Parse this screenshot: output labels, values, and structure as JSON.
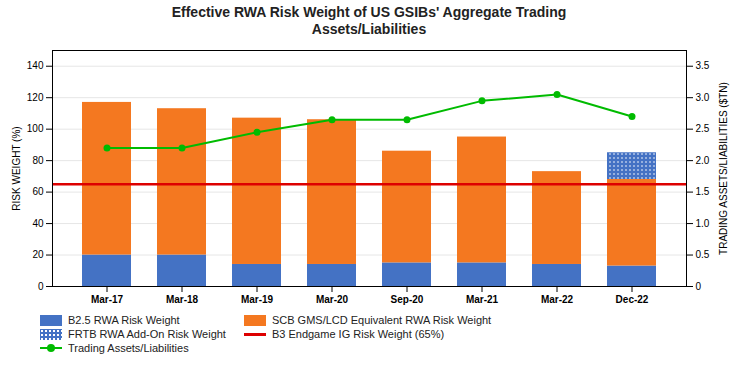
{
  "chart_data": {
    "type": "bar",
    "title": "Effective RWA Risk Weight of US GSIBs' Aggregate Trading\nAssets/Liabilities",
    "categories": [
      "Mar-17",
      "Mar-18",
      "Mar-19",
      "Mar-20",
      "Sep-20",
      "Mar-21",
      "Mar-22",
      "Dec-22"
    ],
    "stacked": true,
    "series": [
      {
        "name": "B2.5 RWA Risk Weight",
        "type": "bar",
        "color": "#4472C4",
        "values": [
          20,
          20,
          14,
          14,
          15,
          15,
          14,
          13
        ]
      },
      {
        "name": "SCB GMS/LCD Equivalent RWA Risk Weight",
        "type": "bar",
        "color": "#F47820",
        "values": [
          97,
          93,
          93,
          92,
          71,
          80,
          59,
          55
        ]
      },
      {
        "name": "FRTB RWA Add-On Risk Weight",
        "type": "bar",
        "color": "#4472C4",
        "values": [
          0,
          0,
          0,
          0,
          0,
          0,
          0,
          17
        ]
      },
      {
        "name": "B3 Endgame IG Risk Weight (65%)",
        "type": "hline",
        "color": "#DD0000",
        "value": 65
      },
      {
        "name": "Trading Assets/Liabilities",
        "type": "line",
        "axis": "y2",
        "color": "#00BB00",
        "marker": "circle",
        "values": [
          2.2,
          2.2,
          2.45,
          2.65,
          2.65,
          2.95,
          3.05,
          2.7
        ]
      }
    ],
    "ylabel": "RISK WEIGHT (%)",
    "y2label": "TRADING ASSETS/LIABILITIES ($TN)",
    "ylim": [
      0,
      150
    ],
    "yticks": [
      0,
      20,
      40,
      60,
      80,
      100,
      120,
      140
    ],
    "y2lim": [
      0,
      3.75
    ],
    "y2ticks": [
      0,
      0.5,
      {
        "value": 1.0,
        "label": "1.0"
      },
      1.5,
      {
        "value": 2.0,
        "label": "2.0"
      },
      2.5,
      {
        "value": 3.0,
        "label": "3.0"
      },
      3.5
    ],
    "grid": true,
    "legend": "lower left"
  }
}
